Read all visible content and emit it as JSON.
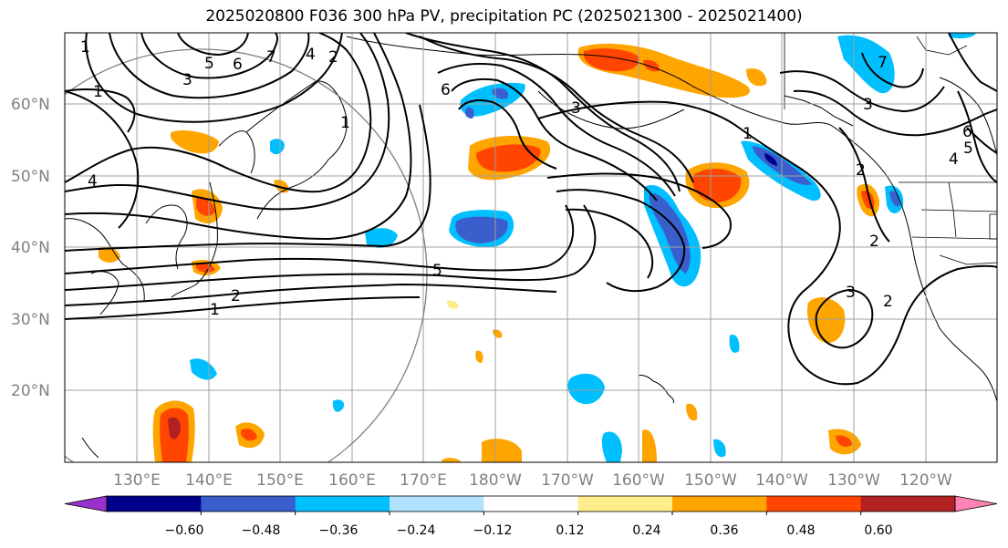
{
  "title": "2025020800 F036 300 hPa PV, precipitation PC (2025021300 - 2025021400)",
  "lat_labels": [
    "60°N",
    "50°N",
    "40°N",
    "30°N",
    "20°N"
  ],
  "lon_labels": [
    "130°E",
    "140°E",
    "150°E",
    "160°E",
    "170°E",
    "180°W",
    "170°W",
    "160°W",
    "150°W",
    "140°W",
    "130°W",
    "120°W"
  ],
  "colorbar": {
    "ticks": [
      "−0.60",
      "−0.48",
      "−0.36",
      "−0.24",
      "−0.12",
      "0.12",
      "0.24",
      "0.36",
      "0.48",
      "0.60"
    ],
    "colors": [
      "#9932cc",
      "#00008b",
      "#3a5fcd",
      "#00bfff",
      "#b0e2ff",
      "#ffffff",
      "#ffec8b",
      "#ffa500",
      "#ff4500",
      "#b22222",
      "#ff83b4"
    ]
  },
  "contour_labels": [
    "1",
    "2",
    "3",
    "4",
    "5",
    "6",
    "7",
    "1",
    "4",
    "1",
    "2",
    "5",
    "6",
    "7",
    "3",
    "1",
    "2",
    "3",
    "2",
    "1",
    "6",
    "5",
    "4",
    "2",
    "3"
  ]
}
